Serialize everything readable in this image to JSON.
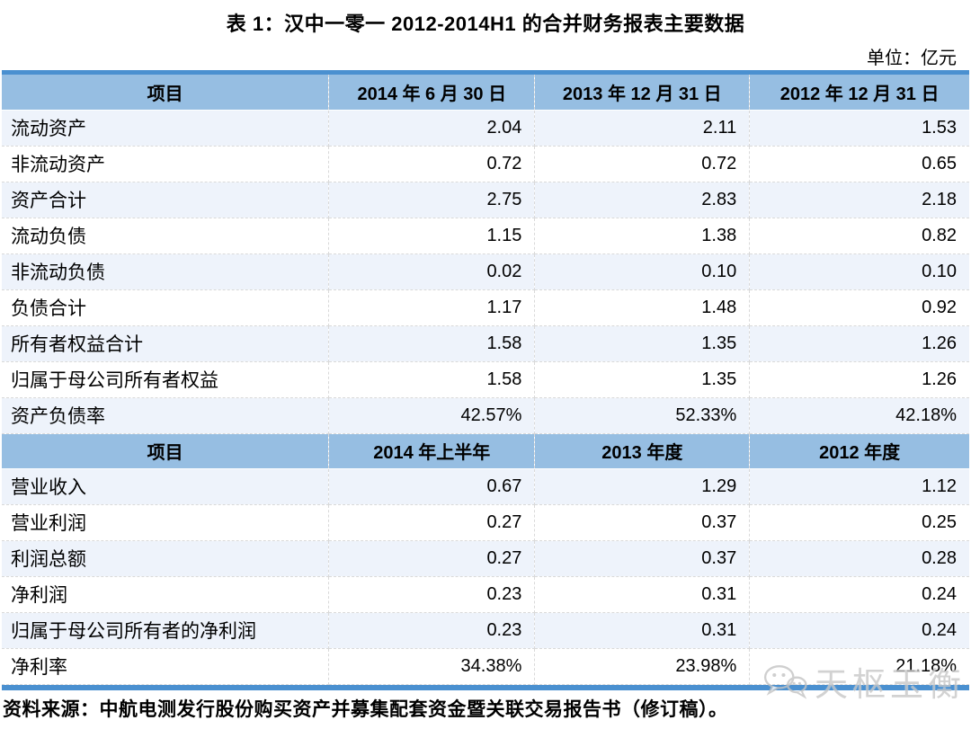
{
  "page": {
    "title": "表 1：汉中一零一 2012-2014H1 的合并财务报表主要数据",
    "unit_label": "单位：亿元",
    "source": "资料来源：中航电测发行股份购买资产并募集配套资金暨关联交易报告书（修订稿）。",
    "watermark_text": "天枢玉衡"
  },
  "table": {
    "sections": [
      {
        "header": [
          "项目",
          "2014 年 6 月 30 日",
          "2013 年 12 月 31 日",
          "2012 年 12 月 31 日"
        ],
        "rows": [
          [
            "流动资产",
            "2.04",
            "2.11",
            "1.53"
          ],
          [
            "非流动资产",
            "0.72",
            "0.72",
            "0.65"
          ],
          [
            "资产合计",
            "2.75",
            "2.83",
            "2.18"
          ],
          [
            "流动负债",
            "1.15",
            "1.38",
            "0.82"
          ],
          [
            "非流动负债",
            "0.02",
            "0.10",
            "0.10"
          ],
          [
            "负债合计",
            "1.17",
            "1.48",
            "0.92"
          ],
          [
            "所有者权益合计",
            "1.58",
            "1.35",
            "1.26"
          ],
          [
            "归属于母公司所有者权益",
            "1.58",
            "1.35",
            "1.26"
          ],
          [
            "资产负债率",
            "42.57%",
            "52.33%",
            "42.18%"
          ]
        ]
      },
      {
        "header": [
          "项目",
          "2014 年上半年",
          "2013 年度",
          "2012 年度"
        ],
        "rows": [
          [
            "营业收入",
            "0.67",
            "1.29",
            "1.12"
          ],
          [
            "营业利润",
            "0.27",
            "0.37",
            "0.25"
          ],
          [
            "利润总额",
            "0.27",
            "0.37",
            "0.28"
          ],
          [
            "净利润",
            "0.23",
            "0.31",
            "0.24"
          ],
          [
            "归属于母公司所有者的净利润",
            "0.23",
            "0.31",
            "0.24"
          ],
          [
            "净利率",
            "34.38%",
            "23.98%",
            "21.18%"
          ]
        ]
      }
    ]
  },
  "colors": {
    "accent_bar": "#4A90D0",
    "header_bg": "#96BEE2",
    "row_alt_bg": "#EEF3FB",
    "row_bg": "#FFFFFF",
    "border": "#D9D9D9",
    "text": "#000000",
    "watermark": "#C8C8C8"
  }
}
